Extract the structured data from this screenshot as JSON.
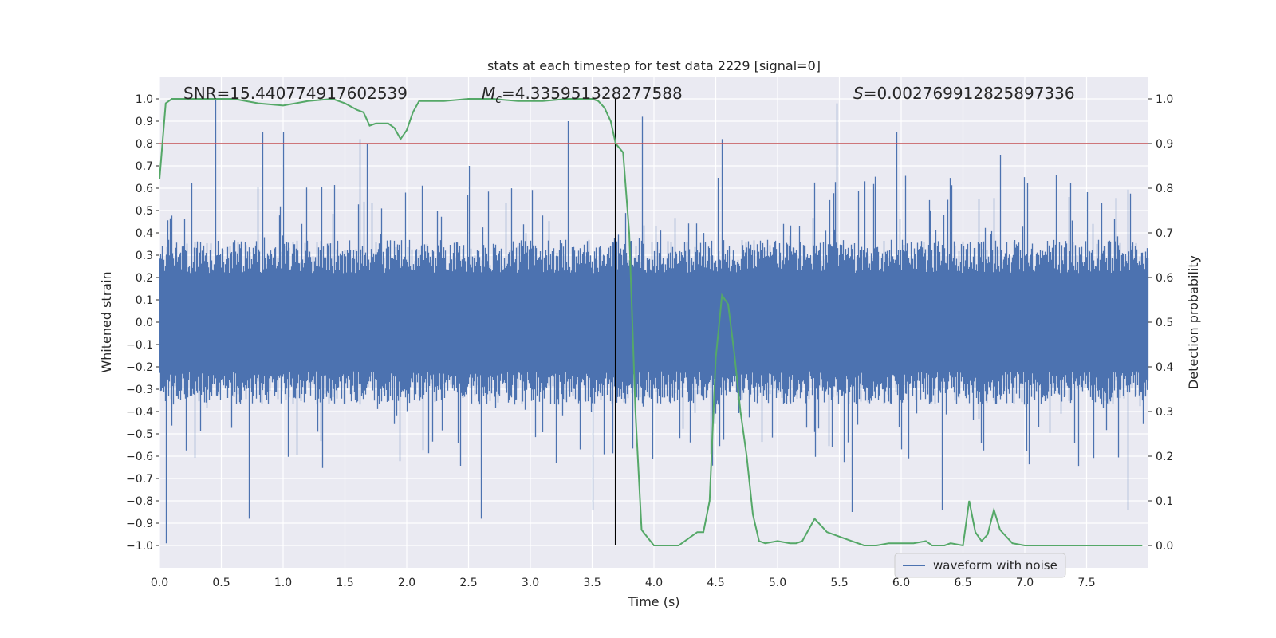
{
  "chart_data": {
    "type": "line",
    "title": "stats at each timestep for test data 2229 [signal=0]",
    "xlabel": "Time (s)",
    "ylabel": "Whitened strain",
    "y2label": "Detection probability",
    "xlim": [
      0.0,
      8.0
    ],
    "ylim": [
      -1.1,
      1.1
    ],
    "y2lim": [
      -0.05,
      1.05
    ],
    "xticks": [
      "0.0",
      "0.5",
      "1.0",
      "1.5",
      "2.0",
      "2.5",
      "3.0",
      "3.5",
      "4.0",
      "4.5",
      "5.0",
      "5.5",
      "6.0",
      "6.5",
      "7.0",
      "7.5"
    ],
    "yticks": [
      "1.0",
      "0.9",
      "0.8",
      "0.7",
      "0.6",
      "0.5",
      "0.4",
      "0.3",
      "0.2",
      "0.1",
      "0.0",
      "−0.1",
      "−0.2",
      "−0.3",
      "−0.4",
      "−0.5",
      "−0.6",
      "−0.7",
      "−0.8",
      "−0.9",
      "−1.0"
    ],
    "y2ticks": [
      "1.0",
      "0.9",
      "0.8",
      "0.7",
      "0.6",
      "0.5",
      "0.4",
      "0.3",
      "0.2",
      "0.1",
      "0.0"
    ],
    "annotations": {
      "snr": "SNR=15.440774917602539",
      "mc_symbol": "M",
      "mc_sub": "c",
      "mc_value": "=4.335951328277588",
      "s_symbol": "S",
      "s_value": "=0.002769912825897336"
    },
    "threshold_y2": 0.9,
    "event_time": 3.69,
    "legend": {
      "label": "waveform with noise",
      "placement": "lower-right"
    },
    "series": [
      {
        "name": "waveform with noise",
        "axis": "left",
        "description": "noise waveform, approx. envelope ±0.35 typical, spikes to ±1.0",
        "peaks": [
          [
            0.45,
            1.0
          ],
          [
            0.83,
            0.85
          ],
          [
            1.0,
            0.85
          ],
          [
            1.62,
            0.82
          ],
          [
            1.68,
            0.8
          ],
          [
            2.5,
            0.7
          ],
          [
            3.3,
            0.9
          ],
          [
            3.9,
            0.92
          ],
          [
            4.55,
            0.82
          ],
          [
            5.48,
            0.98
          ],
          [
            5.96,
            0.85
          ],
          [
            6.8,
            0.75
          ],
          [
            0.05,
            -0.99
          ],
          [
            0.72,
            -0.88
          ],
          [
            2.6,
            -0.88
          ],
          [
            3.5,
            -0.84
          ],
          [
            5.6,
            -0.85
          ],
          [
            6.33,
            -0.84
          ],
          [
            7.83,
            -0.84
          ]
        ]
      },
      {
        "name": "detection probability",
        "axis": "right",
        "color": "#55a868",
        "x": [
          0.0,
          0.05,
          0.1,
          0.3,
          0.45,
          0.6,
          0.8,
          1.0,
          1.2,
          1.4,
          1.5,
          1.6,
          1.65,
          1.7,
          1.75,
          1.85,
          1.9,
          1.95,
          2.0,
          2.05,
          2.1,
          2.3,
          2.5,
          2.7,
          2.9,
          3.1,
          3.3,
          3.5,
          3.55,
          3.6,
          3.65,
          3.69,
          3.75,
          3.8,
          3.85,
          3.9,
          4.0,
          4.1,
          4.2,
          4.3,
          4.35,
          4.4,
          4.45,
          4.5,
          4.55,
          4.6,
          4.65,
          4.7,
          4.75,
          4.8,
          4.85,
          4.9,
          5.0,
          5.1,
          5.15,
          5.2,
          5.3,
          5.4,
          5.5,
          5.6,
          5.7,
          5.8,
          5.9,
          6.0,
          6.1,
          6.2,
          6.25,
          6.3,
          6.35,
          6.4,
          6.5,
          6.55,
          6.6,
          6.65,
          6.7,
          6.75,
          6.8,
          6.9,
          7.0,
          7.1,
          7.3,
          7.5,
          7.7,
          7.9,
          7.95
        ],
        "y": [
          0.82,
          0.99,
          1.0,
          1.0,
          1.0,
          1.0,
          0.99,
          0.985,
          0.995,
          1.0,
          0.99,
          0.975,
          0.97,
          0.94,
          0.945,
          0.945,
          0.935,
          0.91,
          0.93,
          0.97,
          0.995,
          0.995,
          1.0,
          1.0,
          0.995,
          0.995,
          1.0,
          1.0,
          0.995,
          0.98,
          0.95,
          0.9,
          0.88,
          0.7,
          0.3,
          0.035,
          0.0,
          0.0,
          0.0,
          0.02,
          0.03,
          0.03,
          0.1,
          0.42,
          0.56,
          0.54,
          0.43,
          0.3,
          0.2,
          0.07,
          0.01,
          0.005,
          0.01,
          0.005,
          0.005,
          0.01,
          0.06,
          0.03,
          0.02,
          0.01,
          0.0,
          0.0,
          0.005,
          0.005,
          0.005,
          0.01,
          0.0,
          0.0,
          0.0,
          0.005,
          0.0,
          0.1,
          0.03,
          0.01,
          0.025,
          0.08,
          0.035,
          0.005,
          0.0,
          0.0,
          0.0,
          0.0,
          0.0,
          0.0,
          0.0
        ]
      }
    ]
  }
}
